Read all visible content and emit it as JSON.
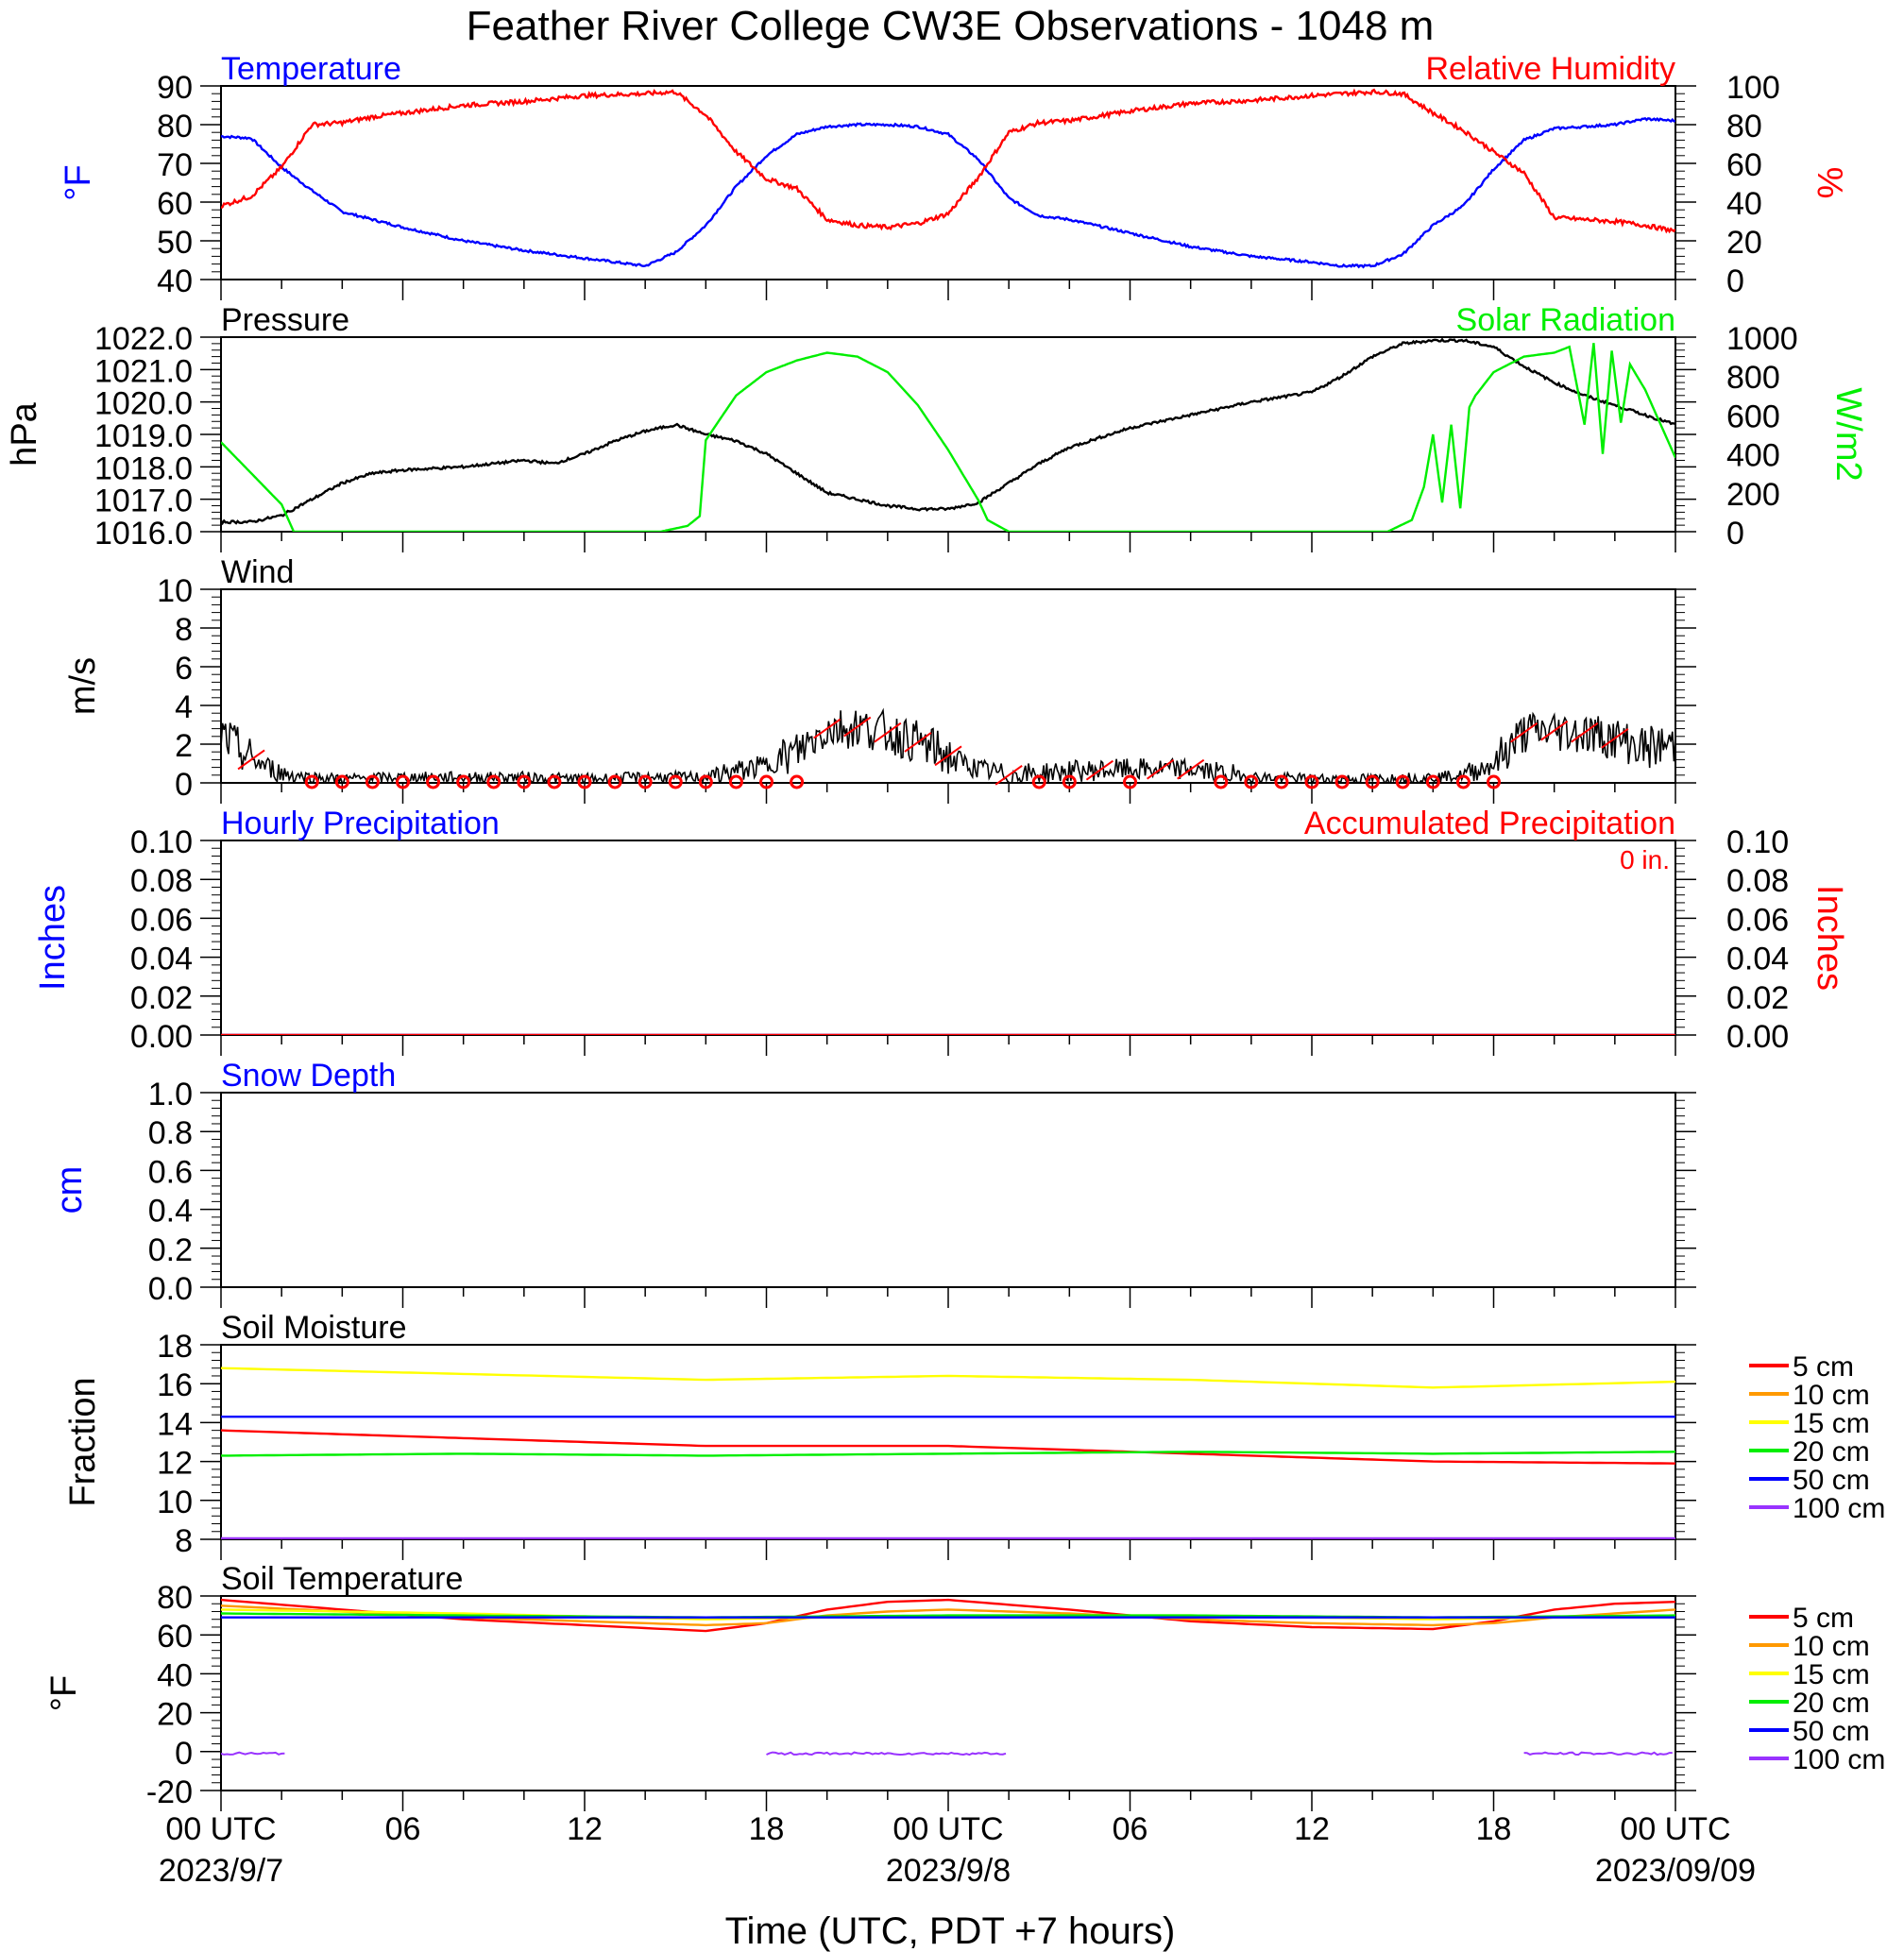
{
  "title": "Feather River College CW3E Observations - 1048 m",
  "x_axis": {
    "label": "Time (UTC, PDT +7 hours)",
    "tick_hours": [
      0,
      6,
      12,
      18,
      24,
      30,
      36,
      42,
      48
    ],
    "tick_labels": [
      "00 UTC",
      "06",
      "12",
      "18",
      "00 UTC",
      "06",
      "12",
      "18",
      "00 UTC"
    ],
    "date_labels": [
      {
        "hour": 0,
        "text": "2023/9/7"
      },
      {
        "hour": 24,
        "text": "2023/9/8"
      },
      {
        "hour": 48,
        "text": "2023/09/09"
      }
    ],
    "range_hours": [
      0,
      48
    ]
  },
  "colors": {
    "blue": "#0000ff",
    "red": "#ff0000",
    "green": "#00ee00",
    "black": "#000000",
    "orange": "#ff9900",
    "yellow": "#ffff00",
    "purple": "#9933ff"
  },
  "chart_data": [
    {
      "type": "line",
      "panel": "temperature-humidity",
      "left_title": "Temperature",
      "right_title": "Relative Humidity",
      "ylabel": "°F",
      "y2label": "%",
      "ylim": [
        40,
        90
      ],
      "yticks": [
        40,
        50,
        60,
        70,
        80,
        90
      ],
      "y2lim": [
        0,
        100
      ],
      "y2ticks": [
        0,
        20,
        40,
        60,
        80,
        100
      ],
      "series": [
        {
          "name": "Temperature",
          "axis": "left",
          "color": "#0000ff",
          "x": [
            0,
            1,
            2,
            3,
            4,
            5,
            6,
            8,
            10,
            12,
            13,
            14,
            15,
            16,
            17,
            18,
            19,
            20,
            21,
            22,
            23,
            24,
            25,
            26,
            27,
            28,
            30,
            32,
            34,
            36,
            37,
            38,
            39,
            40,
            41,
            42,
            43,
            44,
            45,
            46,
            47,
            48
          ],
          "y": [
            77,
            76.5,
            69,
            63,
            57.5,
            55.5,
            53.5,
            50,
            47.5,
            45.5,
            44.5,
            43.5,
            47,
            54,
            64,
            72,
            77.5,
            79.5,
            80,
            80,
            79.5,
            77.5,
            71,
            61,
            56.5,
            55.5,
            52,
            48.5,
            46,
            44.5,
            43.5,
            43.5,
            46.5,
            54,
            59,
            68.5,
            76,
            79,
            79.5,
            80,
            81.5,
            81
          ]
        },
        {
          "name": "Relative Humidity",
          "axis": "right",
          "color": "#ff0000",
          "x": [
            0,
            1,
            2,
            3,
            4,
            5,
            6,
            8,
            10,
            12,
            13,
            14,
            15,
            16,
            17,
            18,
            19,
            20,
            21,
            22,
            23,
            24,
            25,
            26,
            27,
            28,
            30,
            32,
            34,
            36,
            37,
            38,
            39,
            40,
            41,
            42,
            43,
            44,
            45,
            46,
            47,
            48
          ],
          "y": [
            38,
            43,
            58,
            80,
            81,
            84,
            86,
            90,
            92,
            95,
            95.5,
            96,
            97,
            85,
            66,
            52,
            47,
            31,
            28,
            27,
            29,
            34,
            53,
            76,
            81,
            82,
            87,
            91,
            92.5,
            95,
            96,
            97,
            96,
            86,
            77,
            66,
            55,
            32,
            31,
            30,
            28,
            25
          ]
        }
      ]
    },
    {
      "type": "line",
      "panel": "pressure-solar",
      "left_title": "Pressure",
      "right_title": "Solar Radiation",
      "ylabel": "hPa",
      "y2label": "W/m2",
      "ylim": [
        1016.0,
        1022.0
      ],
      "yticks": [
        1016.0,
        1017.0,
        1018.0,
        1019.0,
        1020.0,
        1021.0,
        1022.0
      ],
      "y2lim": [
        0,
        1000
      ],
      "y2ticks": [
        0,
        200,
        400,
        600,
        800,
        1000
      ],
      "series": [
        {
          "name": "Pressure",
          "axis": "left",
          "color": "#000000",
          "x": [
            0,
            1,
            2,
            3,
            4,
            5,
            6,
            8,
            10,
            11,
            12,
            13,
            14,
            15,
            16,
            17,
            18,
            19,
            20,
            21,
            22,
            23,
            24,
            25,
            26,
            27,
            28,
            30,
            32,
            34,
            36,
            37,
            38,
            39,
            40,
            41,
            42,
            43,
            44,
            45,
            46,
            47,
            48
          ],
          "y": [
            1016.3,
            1016.3,
            1016.5,
            1017.0,
            1017.5,
            1017.8,
            1017.9,
            1018.0,
            1018.2,
            1018.1,
            1018.4,
            1018.8,
            1019.1,
            1019.3,
            1019.0,
            1018.8,
            1018.4,
            1017.8,
            1017.2,
            1017.0,
            1016.8,
            1016.7,
            1016.7,
            1016.9,
            1017.5,
            1018.1,
            1018.6,
            1019.2,
            1019.6,
            1020.0,
            1020.3,
            1020.8,
            1021.4,
            1021.8,
            1021.9,
            1021.9,
            1021.7,
            1021.1,
            1020.6,
            1020.2,
            1019.9,
            1019.6,
            1019.3
          ]
        },
        {
          "name": "Solar Radiation",
          "axis": "right",
          "color": "#00ee00",
          "x": [
            0,
            1,
            2,
            2.4,
            14.5,
            15.4,
            15.8,
            16.0,
            16.3,
            17.0,
            18.0,
            19.0,
            20.0,
            21.0,
            22.0,
            23.0,
            24.0,
            25.0,
            25.3,
            26.0,
            38.5,
            39.3,
            39.7,
            40.0,
            40.3,
            40.6,
            40.9,
            41.2,
            41.4,
            42.0,
            43.0,
            44.0,
            44.5,
            45.0,
            45.3,
            45.6,
            45.9,
            46.2,
            46.5,
            47.0,
            48.0
          ],
          "y": [
            460,
            300,
            140,
            0,
            0,
            30,
            80,
            470,
            540,
            700,
            820,
            880,
            920,
            900,
            820,
            650,
            420,
            160,
            60,
            0,
            0,
            60,
            230,
            500,
            150,
            550,
            120,
            640,
            700,
            820,
            900,
            920,
            950,
            550,
            970,
            400,
            930,
            560,
            860,
            730,
            380
          ]
        }
      ]
    },
    {
      "type": "line",
      "panel": "wind",
      "left_title": "Wind",
      "ylabel": "m/s",
      "ylim": [
        0,
        10
      ],
      "yticks": [
        0,
        2,
        4,
        6,
        8,
        10
      ],
      "series": [
        {
          "name": "Wind",
          "axis": "left",
          "color": "#000000",
          "x": [
            0,
            1,
            2,
            3,
            4,
            6,
            8,
            10,
            12,
            14,
            16,
            17,
            18,
            19,
            20,
            21,
            22,
            23,
            24,
            25,
            26,
            27,
            28,
            30,
            32,
            34,
            36,
            38,
            40,
            41,
            42,
            43,
            44,
            45,
            46,
            47,
            48
          ],
          "y": [
            2.5,
            1.2,
            0.5,
            0.3,
            0.2,
            0.3,
            0.3,
            0.3,
            0.2,
            0.3,
            0.3,
            0.6,
            0.9,
            1.6,
            2.8,
            2.9,
            2.6,
            2.1,
            1.4,
            0.7,
            0.4,
            0.5,
            0.6,
            0.7,
            0.7,
            0.3,
            0.2,
            0.2,
            0.3,
            0.4,
            1.0,
            2.6,
            2.7,
            2.6,
            2.3,
            1.8,
            2.0
          ]
        }
      ],
      "calm_marker_hours": [
        3,
        4,
        5,
        6,
        7,
        8,
        9,
        10,
        11,
        12,
        13,
        14,
        15,
        16,
        17,
        18,
        19,
        27,
        28,
        30,
        33,
        34,
        35,
        36,
        37,
        38,
        39,
        40,
        41,
        42
      ]
    },
    {
      "type": "line",
      "panel": "precipitation",
      "left_title": "Hourly Precipitation",
      "right_title": "Accumulated Precipitation",
      "annotation": "0 in.",
      "ylabel": "Inches",
      "y2label": "Inches",
      "ylim": [
        0,
        0.1
      ],
      "yticks": [
        0.0,
        0.02,
        0.04,
        0.06,
        0.08,
        0.1
      ],
      "y2lim": [
        0,
        0.1
      ],
      "series": [
        {
          "name": "Hourly Precipitation",
          "axis": "left",
          "color": "#0000ff",
          "x": [
            0,
            48
          ],
          "y": [
            0,
            0
          ]
        },
        {
          "name": "Accumulated Precipitation",
          "axis": "right",
          "color": "#ff0000",
          "x": [
            0,
            48
          ],
          "y": [
            0,
            0
          ]
        }
      ]
    },
    {
      "type": "line",
      "panel": "snow",
      "left_title": "Snow Depth",
      "ylabel": "cm",
      "ylim": [
        0,
        1.0
      ],
      "yticks": [
        0.0,
        0.2,
        0.4,
        0.6,
        0.8,
        1.0
      ],
      "series": []
    },
    {
      "type": "line",
      "panel": "soil-moisture",
      "left_title": "Soil Moisture",
      "ylabel": "Fraction",
      "ylim": [
        8,
        18
      ],
      "yticks": [
        8,
        10,
        12,
        14,
        16,
        18
      ],
      "series": [
        {
          "name": "5 cm",
          "color": "#ff0000",
          "x": [
            0,
            8,
            16,
            24,
            32,
            40,
            48
          ],
          "y": [
            13.6,
            13.2,
            12.8,
            12.8,
            12.4,
            12.0,
            11.9
          ]
        },
        {
          "name": "10 cm",
          "color": "#ff9900",
          "x": [
            0,
            48
          ],
          "y": [
            8.0,
            8.0
          ]
        },
        {
          "name": "15 cm",
          "color": "#ffff00",
          "x": [
            0,
            8,
            16,
            24,
            32,
            40,
            48
          ],
          "y": [
            16.8,
            16.5,
            16.2,
            16.4,
            16.2,
            15.8,
            16.1
          ]
        },
        {
          "name": "20 cm",
          "color": "#00ee00",
          "x": [
            0,
            8,
            16,
            24,
            32,
            40,
            48
          ],
          "y": [
            12.3,
            12.4,
            12.3,
            12.4,
            12.5,
            12.4,
            12.5
          ]
        },
        {
          "name": "50 cm",
          "color": "#0000ff",
          "x": [
            0,
            48
          ],
          "y": [
            14.3,
            14.3
          ]
        },
        {
          "name": "100 cm",
          "color": "#9933ff",
          "x": [
            0,
            48
          ],
          "y": [
            8.05,
            8.05
          ]
        }
      ]
    },
    {
      "type": "line",
      "panel": "soil-temperature",
      "left_title": "Soil Temperature",
      "ylabel": "°F",
      "ylim": [
        -20,
        80
      ],
      "yticks": [
        -20,
        0,
        20,
        40,
        60,
        80
      ],
      "series": [
        {
          "name": "5 cm",
          "color": "#ff0000",
          "x": [
            0,
            4,
            8,
            12,
            16,
            18,
            20,
            22,
            24,
            28,
            32,
            36,
            40,
            42,
            44,
            46,
            48
          ],
          "y": [
            78,
            73,
            68,
            65,
            62,
            66,
            73,
            77,
            78,
            73,
            67,
            64,
            63,
            67,
            73,
            76,
            77
          ]
        },
        {
          "name": "10 cm",
          "color": "#ff9900",
          "x": [
            0,
            4,
            8,
            12,
            16,
            18,
            20,
            22,
            24,
            28,
            32,
            36,
            40,
            42,
            44,
            46,
            48
          ],
          "y": [
            75,
            72,
            69,
            67,
            65,
            66,
            70,
            72,
            73,
            71,
            68,
            66,
            65,
            66,
            69,
            71,
            73
          ]
        },
        {
          "name": "15 cm",
          "color": "#ffff00",
          "x": [
            0,
            8,
            16,
            24,
            32,
            40,
            48
          ],
          "y": [
            73,
            71,
            68,
            70,
            70,
            68,
            70
          ]
        },
        {
          "name": "20 cm",
          "color": "#00ee00",
          "x": [
            0,
            8,
            16,
            24,
            32,
            40,
            48
          ],
          "y": [
            71,
            70,
            69,
            70,
            70,
            69,
            70
          ]
        },
        {
          "name": "50 cm",
          "color": "#0000ff",
          "x": [
            0,
            48
          ],
          "y": [
            69,
            69
          ]
        },
        {
          "name": "100 cm",
          "color": "#9933ff",
          "x": [
            0,
            2.2
          ],
          "y": [
            -1,
            -1
          ],
          "x2": [
            18,
            26,
            43.2,
            48
          ],
          "segments": [
            [
              0,
              2.2
            ],
            [
              18,
              26
            ],
            [
              43,
              48
            ]
          ]
        }
      ]
    }
  ],
  "legend_items": [
    "5 cm",
    "10 cm",
    "15 cm",
    "20 cm",
    "50 cm",
    "100 cm"
  ]
}
